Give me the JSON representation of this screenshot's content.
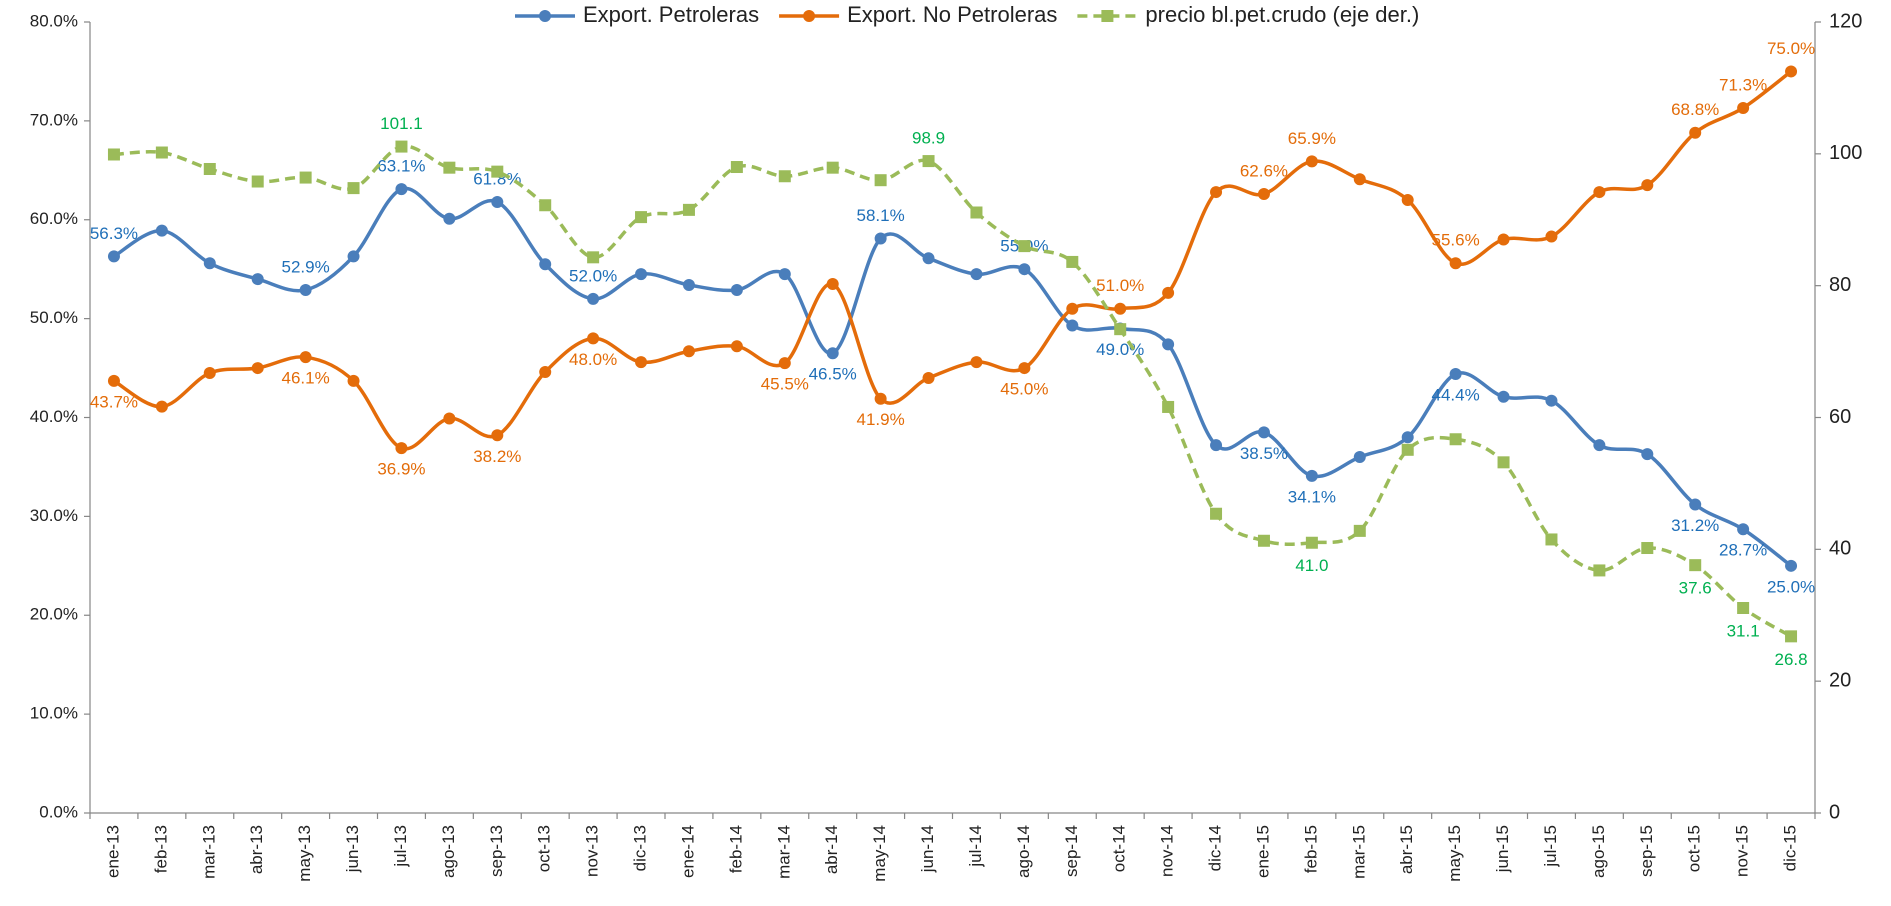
{
  "chart_data": {
    "type": "line",
    "categories": [
      "ene-13",
      "feb-13",
      "mar-13",
      "abr-13",
      "may-13",
      "jun-13",
      "jul-13",
      "ago-13",
      "sep-13",
      "oct-13",
      "nov-13",
      "dic-13",
      "ene-14",
      "feb-14",
      "mar-14",
      "abr-14",
      "may-14",
      "jun-14",
      "jul-14",
      "ago-14",
      "sep-14",
      "oct-14",
      "nov-14",
      "dic-14",
      "ene-15",
      "feb-15",
      "mar-15",
      "abr-15",
      "may-15",
      "jun-15",
      "jul-15",
      "ago-15",
      "sep-15",
      "oct-15",
      "nov-15",
      "dic-15"
    ],
    "series": [
      {
        "name": "Export. Petroleras",
        "color": "#4a7ebb",
        "label_color": "#1f6fb8",
        "dashed": false,
        "marker": "circle",
        "values": [
          56.3,
          58.9,
          55.6,
          54.0,
          52.9,
          56.3,
          63.1,
          60.1,
          61.8,
          55.5,
          52.0,
          54.5,
          53.4,
          52.9,
          54.5,
          46.5,
          58.1,
          56.1,
          54.5,
          55.0,
          49.3,
          49.0,
          47.4,
          37.2,
          38.5,
          34.1,
          36.0,
          38.0,
          44.4,
          42.1,
          41.7,
          37.2,
          36.3,
          31.2,
          28.7,
          25.0
        ],
        "value_labels": [
          "56.3%",
          null,
          null,
          null,
          "52.9%",
          null,
          "63.1%",
          null,
          "61.8%",
          null,
          "52.0%",
          null,
          null,
          null,
          null,
          "46.5%",
          "58.1%",
          null,
          null,
          "55.0%",
          null,
          "49.0%",
          null,
          null,
          "38.5%",
          "34.1%",
          null,
          null,
          "44.4%",
          null,
          null,
          null,
          null,
          "31.2%",
          "28.7%",
          "25.0%"
        ]
      },
      {
        "name": "Export. No Petroleras",
        "color": "#e46c0a",
        "label_color": "#e36c09",
        "dashed": false,
        "marker": "circle",
        "values": [
          43.7,
          41.1,
          44.5,
          45.0,
          46.1,
          43.7,
          36.9,
          39.9,
          38.2,
          44.6,
          48.0,
          45.6,
          46.7,
          47.2,
          45.5,
          53.5,
          41.9,
          44.0,
          45.6,
          45.0,
          51.0,
          51.0,
          52.6,
          62.8,
          62.6,
          65.9,
          64.1,
          62.0,
          55.6,
          58.0,
          58.3,
          62.8,
          63.5,
          68.8,
          71.3,
          75.0
        ],
        "value_labels": [
          "43.7%",
          null,
          null,
          null,
          "46.1%",
          null,
          "36.9%",
          null,
          "38.2%",
          null,
          "48.0%",
          null,
          null,
          null,
          "45.5%",
          null,
          "41.9%",
          null,
          null,
          "45.0%",
          null,
          "51.0%",
          null,
          null,
          "62.6%",
          "65.9%",
          null,
          null,
          "55.6%",
          null,
          null,
          null,
          null,
          "68.8%",
          "71.3%",
          "75.0%"
        ]
      },
      {
        "name": "precio bl.pet.crudo (eje der.)",
        "color": "#9bbb59",
        "label_color": "#00b050",
        "dashed": true,
        "marker": "square",
        "axis": "y2",
        "values": [
          99.9,
          100.2,
          97.7,
          95.8,
          96.4,
          94.8,
          101.1,
          97.9,
          97.3,
          92.2,
          84.3,
          90.4,
          91.5,
          98.0,
          96.6,
          97.9,
          96.0,
          98.9,
          91.1,
          86.0,
          83.6,
          73.4,
          61.6,
          45.4,
          41.3,
          41.0,
          42.8,
          55.1,
          56.7,
          53.2,
          41.5,
          36.8,
          40.2,
          37.6,
          31.1,
          26.8
        ],
        "value_labels": [
          null,
          null,
          null,
          null,
          null,
          null,
          "101.1",
          null,
          null,
          null,
          null,
          null,
          null,
          null,
          null,
          null,
          null,
          "98.9",
          null,
          null,
          null,
          null,
          null,
          null,
          null,
          "41.0",
          null,
          null,
          null,
          null,
          null,
          null,
          null,
          "37.6",
          "31.1",
          "26.8"
        ]
      }
    ],
    "ylim": [
      0,
      80
    ],
    "yticks": [
      {
        "value": 0,
        "label": "0.0%"
      },
      {
        "value": 10,
        "label": "10.0%"
      },
      {
        "value": 20,
        "label": "20.0%"
      },
      {
        "value": 30,
        "label": "30.0%"
      },
      {
        "value": 40,
        "label": "40.0%"
      },
      {
        "value": 50,
        "label": "50.0%"
      },
      {
        "value": 60,
        "label": "60.0%"
      },
      {
        "value": 70,
        "label": "70.0%"
      },
      {
        "value": 80,
        "label": "80.0%"
      }
    ],
    "y2lim": [
      0,
      120
    ],
    "y2ticks": [
      0,
      20,
      40,
      60,
      80,
      100,
      120
    ],
    "grid": false,
    "legend": "top"
  }
}
